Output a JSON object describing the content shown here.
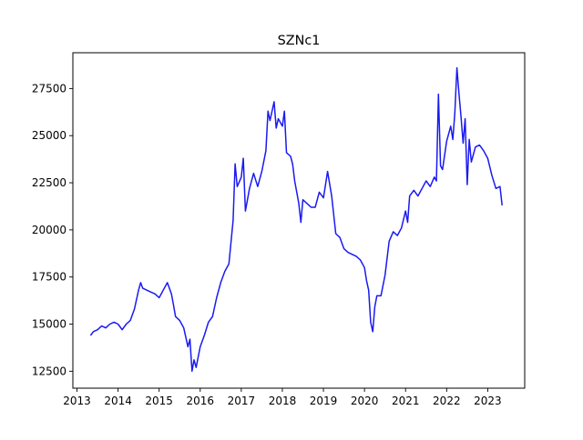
{
  "chart_data": {
    "type": "line",
    "title": "SZNc1",
    "xlabel": "",
    "ylabel": "",
    "xlim": [
      2012.9,
      2023.9
    ],
    "ylim": [
      11600,
      29400
    ],
    "x_ticks": [
      2013,
      2014,
      2015,
      2016,
      2017,
      2018,
      2019,
      2020,
      2021,
      2022,
      2023
    ],
    "x_tick_labels": [
      "2013",
      "2014",
      "2015",
      "2016",
      "2017",
      "2018",
      "2019",
      "2020",
      "2021",
      "2022",
      "2023"
    ],
    "y_ticks": [
      12500,
      15000,
      17500,
      20000,
      22500,
      25000,
      27500
    ],
    "y_tick_labels": [
      "12500",
      "15000",
      "17500",
      "20000",
      "22500",
      "25000",
      "27500"
    ],
    "grid": false,
    "legend": "none",
    "series": [
      {
        "color": "#1a1af0",
        "x": [
          2013.33,
          2013.4,
          2013.5,
          2013.6,
          2013.7,
          2013.8,
          2013.9,
          2014.0,
          2014.1,
          2014.2,
          2014.3,
          2014.4,
          2014.5,
          2014.55,
          2014.6,
          2014.7,
          2014.8,
          2014.9,
          2015.0,
          2015.1,
          2015.2,
          2015.3,
          2015.35,
          2015.4,
          2015.5,
          2015.6,
          2015.7,
          2015.75,
          2015.8,
          2015.85,
          2015.9,
          2016.0,
          2016.1,
          2016.2,
          2016.3,
          2016.4,
          2016.5,
          2016.6,
          2016.7,
          2016.8,
          2016.85,
          2016.9,
          2017.0,
          2017.05,
          2017.1,
          2017.2,
          2017.3,
          2017.4,
          2017.5,
          2017.6,
          2017.65,
          2017.7,
          2017.8,
          2017.85,
          2017.9,
          2018.0,
          2018.05,
          2018.1,
          2018.2,
          2018.25,
          2018.3,
          2018.4,
          2018.45,
          2018.5,
          2018.6,
          2018.7,
          2018.8,
          2018.9,
          2019.0,
          2019.1,
          2019.2,
          2019.3,
          2019.4,
          2019.5,
          2019.6,
          2019.7,
          2019.8,
          2019.9,
          2020.0,
          2020.05,
          2020.1,
          2020.15,
          2020.2,
          2020.25,
          2020.3,
          2020.4,
          2020.5,
          2020.6,
          2020.7,
          2020.8,
          2020.9,
          2021.0,
          2021.05,
          2021.1,
          2021.2,
          2021.3,
          2021.4,
          2021.5,
          2021.6,
          2021.7,
          2021.75,
          2021.8,
          2021.85,
          2021.9,
          2022.0,
          2022.1,
          2022.15,
          2022.2,
          2022.25,
          2022.3,
          2022.35,
          2022.4,
          2022.45,
          2022.5,
          2022.55,
          2022.6,
          2022.7,
          2022.8,
          2022.9,
          2023.0,
          2023.1,
          2023.2,
          2023.3,
          2023.35
        ],
        "y": [
          14400,
          14600,
          14700,
          14900,
          14800,
          15000,
          15100,
          15000,
          14700,
          15000,
          15200,
          15800,
          16800,
          17200,
          16900,
          16800,
          16700,
          16600,
          16400,
          16800,
          17200,
          16600,
          16000,
          15400,
          15200,
          14800,
          13800,
          14200,
          12500,
          13100,
          12700,
          13800,
          14400,
          15100,
          15400,
          16400,
          17200,
          17800,
          18200,
          20500,
          23500,
          22300,
          22800,
          23800,
          21000,
          22200,
          23000,
          22300,
          23100,
          24200,
          26300,
          25800,
          26800,
          25400,
          25900,
          25500,
          26300,
          24100,
          23900,
          23500,
          22600,
          21400,
          20400,
          21600,
          21400,
          21200,
          21200,
          22000,
          21700,
          23100,
          21800,
          19800,
          19600,
          19000,
          18800,
          18700,
          18600,
          18400,
          18000,
          17300,
          16800,
          15100,
          14600,
          15900,
          16500,
          16500,
          17600,
          19400,
          19900,
          19700,
          20100,
          21000,
          20400,
          21800,
          22100,
          21800,
          22200,
          22600,
          22300,
          22800,
          22600,
          27200,
          23400,
          23200,
          24700,
          25500,
          24800,
          26200,
          28600,
          27200,
          26000,
          24600,
          25900,
          22400,
          24800,
          23600,
          24400,
          24500,
          24200,
          23800,
          22900,
          22200,
          22300,
          21300
        ]
      }
    ]
  }
}
